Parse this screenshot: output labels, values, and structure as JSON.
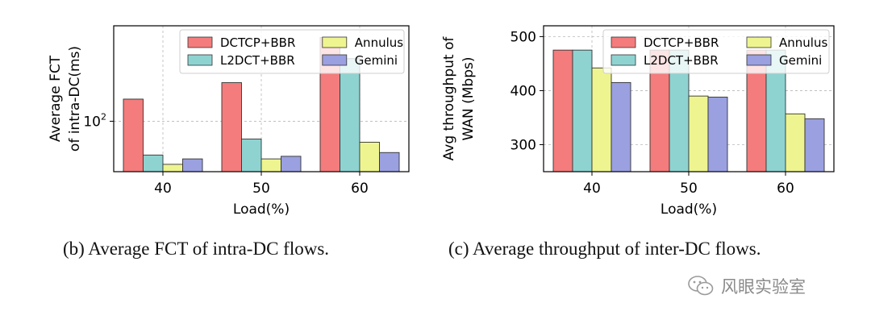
{
  "chart_data": [
    {
      "type": "bar",
      "yscale": "log",
      "categories": [
        "40",
        "50",
        "60"
      ],
      "xlabel": "Load(%)",
      "ylabel": [
        "Average FCT",
        "of intra-DC(ms)"
      ],
      "ylim": [
        55,
        310
      ],
      "yticks": [
        {
          "value": 100,
          "label": "10",
          "exp": "2"
        }
      ],
      "grid": true,
      "legend_position": "top-right",
      "series": [
        {
          "name": "DCTCP+BBR",
          "color": "#f47c7c",
          "values": [
            130,
            158,
            270
          ]
        },
        {
          "name": "L2DCT+BBR",
          "color": "#8fd3d1",
          "values": [
            67,
            81,
            210
          ]
        },
        {
          "name": "Annulus",
          "color": "#eef590",
          "values": [
            60,
            64,
            78
          ]
        },
        {
          "name": "Gemini",
          "color": "#9aa0e0",
          "values": [
            64,
            66,
            69
          ]
        }
      ]
    },
    {
      "type": "bar",
      "categories": [
        "40",
        "50",
        "60"
      ],
      "xlabel": "Load(%)",
      "ylabel": [
        "Avg throughput of",
        "WAN (Mbps)"
      ],
      "ylim": [
        250,
        520
      ],
      "yticks": [
        {
          "value": 300,
          "label": "300"
        },
        {
          "value": 400,
          "label": "400"
        },
        {
          "value": 500,
          "label": "500"
        }
      ],
      "grid": true,
      "legend_position": "top-right",
      "series": [
        {
          "name": "DCTCP+BBR",
          "color": "#f47c7c",
          "values": [
            475,
            475,
            475
          ]
        },
        {
          "name": "L2DCT+BBR",
          "color": "#8fd3d1",
          "values": [
            475,
            475,
            475
          ]
        },
        {
          "name": "Annulus",
          "color": "#eef590",
          "values": [
            442,
            390,
            357
          ]
        },
        {
          "name": "Gemini",
          "color": "#9aa0e0",
          "values": [
            415,
            388,
            348
          ]
        }
      ]
    }
  ],
  "captions": {
    "b": "(b) Average FCT of intra-DC flows.",
    "c": "(c) Average throughput of inter-DC flows."
  },
  "watermark": {
    "text": "风眼实验室",
    "icon": "wechat-icon"
  }
}
